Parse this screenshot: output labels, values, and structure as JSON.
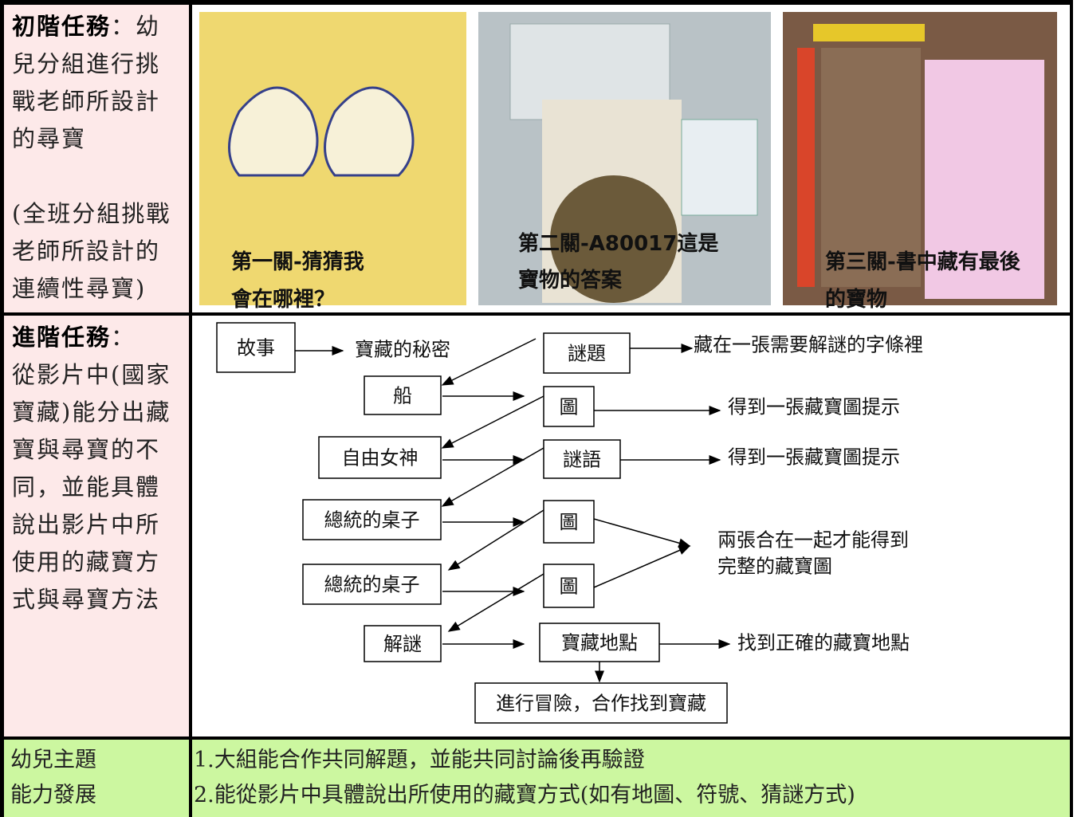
{
  "basic_task": {
    "heading": "初階任務",
    "paragraphs": [
      "：幼兒分組進行挑戰老師所設計的尋寶",
      "(全班分組挑戰老師所設計的連續性尋寶)"
    ],
    "photos": [
      {
        "caption": [
          "第一關-猜猜我",
          "會在哪裡？"
        ]
      },
      {
        "caption": [
          "第二關-A80017這是",
          "寶物的答案"
        ]
      },
      {
        "caption": [
          "第三關-書中藏有最後",
          "的寶物"
        ]
      }
    ]
  },
  "advanced_task": {
    "heading": "進階任務",
    "paragraphs": [
      "：",
      "從影片中(國家寶藏)能分出藏寶與尋寶的不同，並能具體說出影片中所使用的藏寶方式與尋寶方法"
    ],
    "flow": {
      "nodes": [
        "故事",
        "謎題",
        "船",
        "圖",
        "自由女神",
        "謎語",
        "總統的桌子",
        "圖",
        "總統的桌子",
        "圖",
        "解謎",
        "寶藏地點",
        "進行冒險，合作找到寶藏"
      ],
      "notes": [
        "寶藏的秘密",
        "藏在一張需要解謎的字條裡",
        "得到一張藏寶圖提示",
        "得到一張藏寶圖提示",
        "兩張合在一起才能得到",
        "完整的藏寶圖",
        "找到正確的藏寶地點"
      ]
    }
  },
  "development": {
    "heading": [
      "幼兒主題",
      "能力發展"
    ],
    "items": [
      "1.大組能合作共同解題，並能共同討論後再驗證",
      "2.能從影片中具體說出所使用的藏寶方式(如有地圖、符號、猜謎方式)"
    ]
  }
}
